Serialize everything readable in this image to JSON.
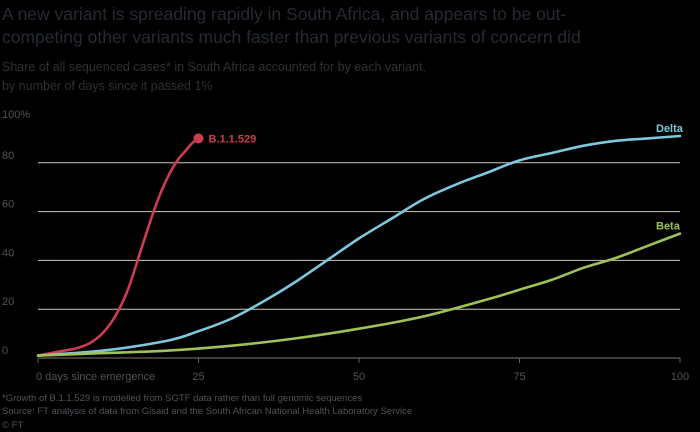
{
  "title_line1": "A new variant is spreading rapidly in South Africa, and appears to be out-",
  "title_line2": "competing other variants much faster than previous variants of concern did",
  "subtitle_line1": "Share of all sequenced cases* in South Africa accounted for by each variant,",
  "subtitle_line2": "by number of days since it passed 1%",
  "footnote": "*Growth of B.1.1.529 is modelled from SGTF data rather than full genomic sequences",
  "source": "Source: FT analysis of data from Gisaid and the South African National Health Laboratory Service",
  "credit": "© FT",
  "colors": {
    "omicron": "#cc3d4f",
    "delta": "#7ec8de",
    "beta": "#9fc15a"
  },
  "chart_data": {
    "type": "line",
    "xlim": [
      0,
      100
    ],
    "ylim": [
      0,
      100
    ],
    "x_ticks": [
      0,
      25,
      50,
      75,
      100
    ],
    "x_tick_labels": [
      "0 days since emergence",
      "25",
      "50",
      "75",
      "100"
    ],
    "y_ticks": [
      0,
      20,
      40,
      60,
      80,
      100
    ],
    "y_tick_labels": [
      "0",
      "20",
      "40",
      "60",
      "80",
      "100%"
    ],
    "grid": true,
    "series": [
      {
        "name": "B.1.1.529",
        "color": "#cc3d4f",
        "x": [
          0,
          2,
          4,
          6,
          8,
          10,
          12,
          14,
          16,
          18,
          19,
          20,
          21,
          22,
          23,
          24,
          25
        ],
        "y": [
          1,
          2,
          3,
          4,
          6,
          10,
          17,
          28,
          44,
          60,
          67,
          73,
          78,
          82,
          85,
          88,
          90
        ]
      },
      {
        "name": "Delta",
        "color": "#7ec8de",
        "x": [
          0,
          10,
          20,
          25,
          30,
          35,
          40,
          45,
          50,
          55,
          60,
          65,
          70,
          75,
          80,
          85,
          90,
          95,
          100
        ],
        "y": [
          1,
          3,
          7,
          11,
          16,
          23,
          31,
          40,
          49,
          57,
          65,
          71,
          76,
          81,
          84,
          87,
          89,
          90,
          91
        ]
      },
      {
        "name": "Beta",
        "color": "#9fc15a",
        "x": [
          0,
          10,
          20,
          30,
          40,
          50,
          60,
          70,
          75,
          80,
          85,
          90,
          95,
          100
        ],
        "y": [
          1,
          2,
          3,
          5,
          8,
          12,
          17,
          24,
          28,
          32,
          37,
          41,
          46,
          51
        ]
      }
    ]
  }
}
